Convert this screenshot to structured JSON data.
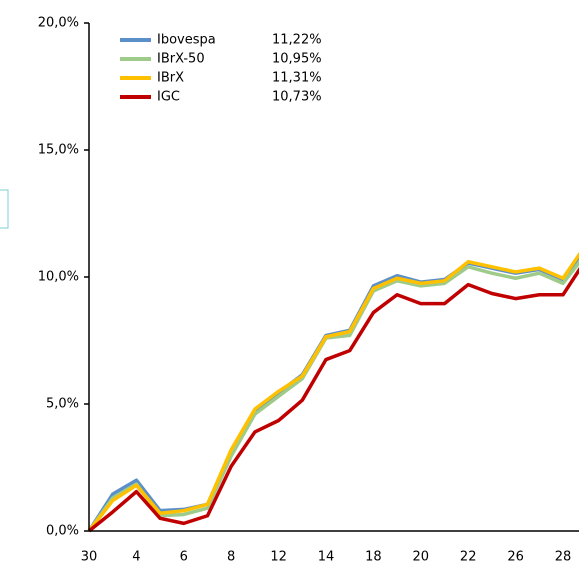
{
  "chart_data": {
    "type": "line",
    "categories": [
      "30",
      null,
      "4",
      null,
      "6",
      null,
      "8",
      null,
      "12",
      null,
      "14",
      null,
      "18",
      null,
      "20",
      null,
      "22",
      null,
      "26",
      null,
      "28",
      null
    ],
    "series": [
      {
        "name": "Ibovespa",
        "legend_label": "11,22%",
        "color": "#5b8fc9",
        "values": [
          0,
          1.45,
          2.0,
          0.8,
          0.85,
          1.05,
          3.1,
          4.75,
          5.45,
          6.15,
          7.7,
          7.9,
          9.65,
          10.05,
          9.8,
          9.9,
          10.55,
          10.35,
          10.15,
          10.3,
          9.9,
          11.22
        ]
      },
      {
        "name": "IBrX-50",
        "legend_label": "10,95%",
        "color": "#9fcb8a",
        "values": [
          0,
          1.3,
          1.85,
          0.6,
          0.65,
          0.9,
          2.95,
          4.6,
          5.3,
          6.0,
          7.6,
          7.7,
          9.45,
          9.85,
          9.65,
          9.75,
          10.4,
          10.15,
          9.95,
          10.15,
          9.75,
          10.95
        ]
      },
      {
        "name": "IBrX",
        "legend_label": "11,31%",
        "color": "#ffc000",
        "values": [
          0,
          1.2,
          1.8,
          0.7,
          0.8,
          1.05,
          3.2,
          4.8,
          5.5,
          6.1,
          7.65,
          7.85,
          9.55,
          9.95,
          9.75,
          9.85,
          10.6,
          10.4,
          10.2,
          10.35,
          9.95,
          11.31
        ]
      },
      {
        "name": "IGC",
        "legend_label": "10,73%",
        "color": "#c00000",
        "values": [
          0,
          0.75,
          1.55,
          0.5,
          0.3,
          0.6,
          2.55,
          3.9,
          4.35,
          5.15,
          6.75,
          7.1,
          8.6,
          9.3,
          8.95,
          8.95,
          9.7,
          9.35,
          9.15,
          9.3,
          9.3,
          10.73
        ]
      }
    ],
    "ylim": [
      0,
      20
    ],
    "yticks": [
      {
        "value": 0,
        "label": "0,0%"
      },
      {
        "value": 5,
        "label": "5,0%"
      },
      {
        "value": 10,
        "label": "10,0%"
      },
      {
        "value": 15,
        "label": "15,0%"
      },
      {
        "value": 20,
        "label": "20,0%"
      }
    ],
    "legend": "top-left"
  }
}
